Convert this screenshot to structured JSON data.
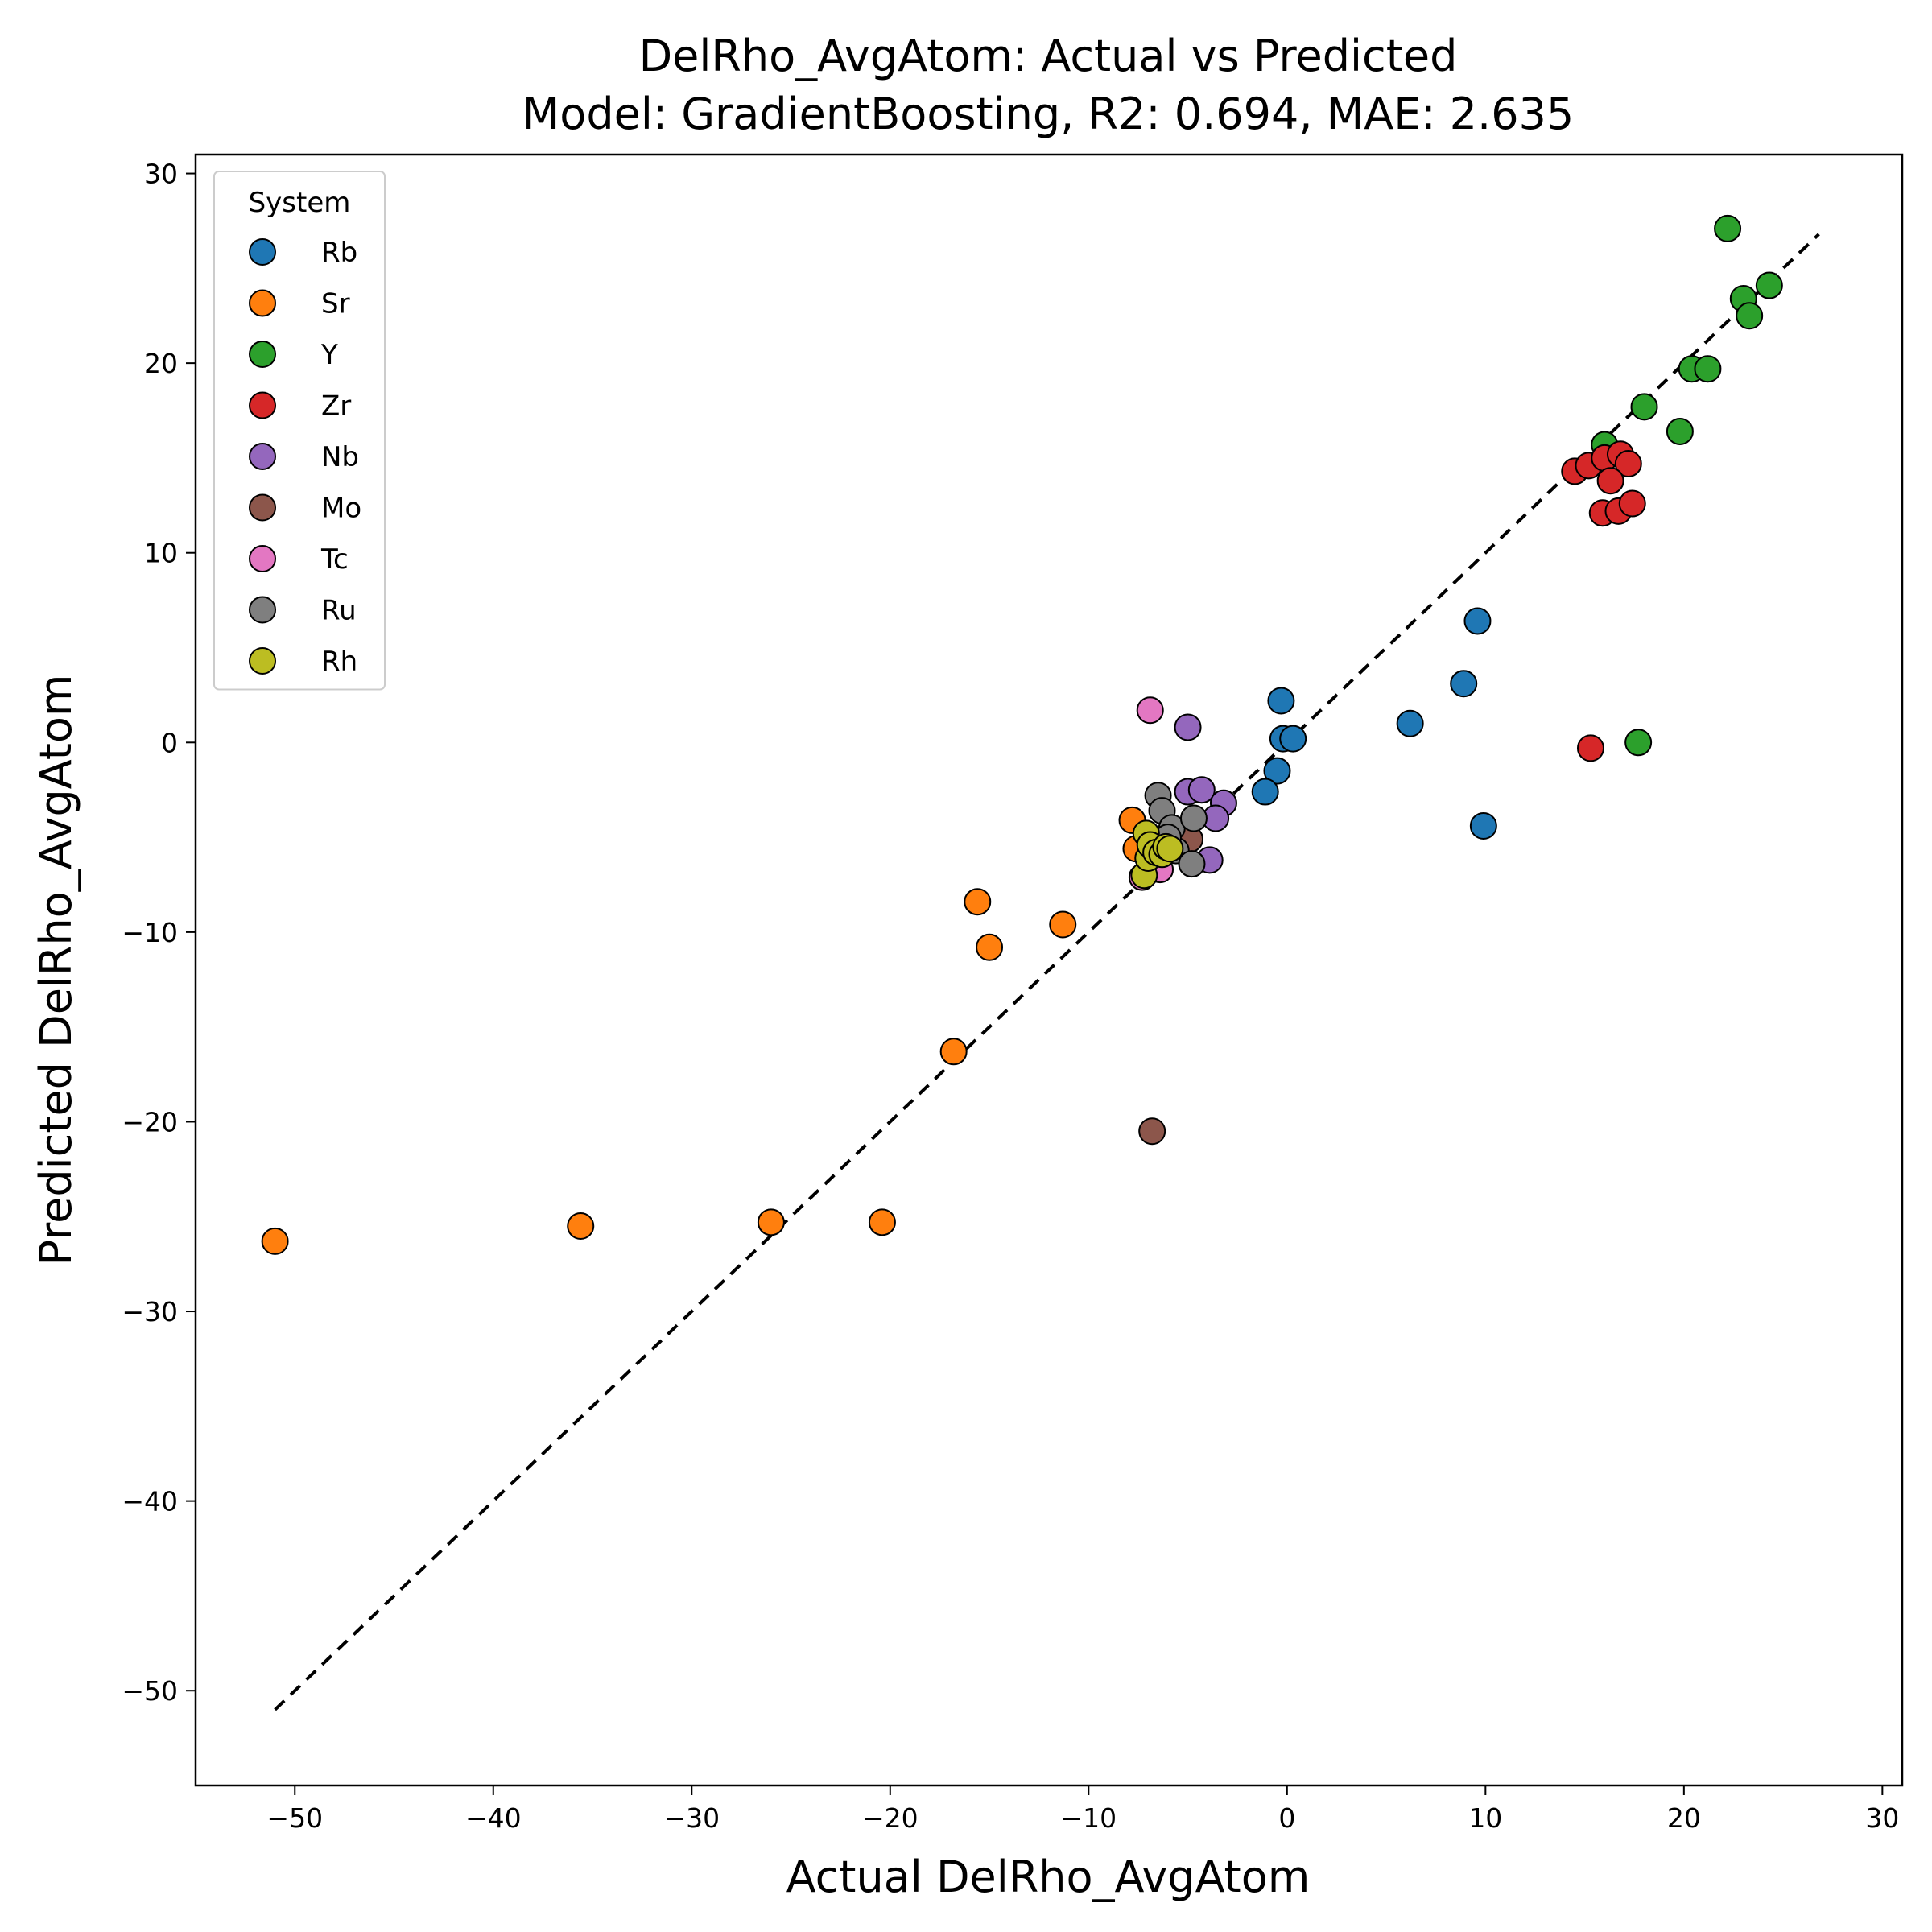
{
  "chart_data": {
    "type": "scatter",
    "title_line1": "DelRho_AvgAtom: Actual vs Predicted",
    "title_line2": "Model: GradientBoosting, R2: 0.694, MAE: 2.635",
    "xlabel": "Actual DelRho_AvgAtom",
    "ylabel": "Predicted DelRho_AvgAtom",
    "xlim": [
      -55,
      31
    ],
    "ylim": [
      -55,
      31
    ],
    "xticks": [
      -50,
      -40,
      -30,
      -20,
      -10,
      0,
      10,
      20,
      30
    ],
    "yticks": [
      -50,
      -40,
      -30,
      -20,
      -10,
      0,
      10,
      20,
      30
    ],
    "xtick_labels": [
      "−50",
      "−40",
      "−30",
      "−20",
      "−10",
      "0",
      "10",
      "20",
      "30"
    ],
    "ytick_labels": [
      "−50",
      "−40",
      "−30",
      "−20",
      "−10",
      "0",
      "10",
      "20",
      "30"
    ],
    "grid": false,
    "legend": {
      "title": "System",
      "placement": "top-left"
    },
    "reference_line": {
      "style": "dashed",
      "color": "#000000",
      "x": [
        -51,
        26.8
      ],
      "y": [
        -51,
        26.8
      ]
    },
    "series": [
      {
        "name": "Rb",
        "color": "#1f77b4",
        "points": [
          [
            -0.3,
            2.2
          ],
          [
            -0.2,
            0.2
          ],
          [
            0.3,
            0.2
          ],
          [
            -0.5,
            -1.5
          ],
          [
            -1.1,
            -2.6
          ],
          [
            6.2,
            1.0
          ],
          [
            8.9,
            3.1
          ],
          [
            9.6,
            6.4
          ],
          [
            9.9,
            -4.4
          ]
        ]
      },
      {
        "name": "Sr",
        "color": "#ff7f0e",
        "points": [
          [
            -51.0,
            -26.3
          ],
          [
            -35.6,
            -25.5
          ],
          [
            -26.0,
            -25.3
          ],
          [
            -20.4,
            -25.3
          ],
          [
            -16.8,
            -16.3
          ],
          [
            -15.6,
            -8.4
          ],
          [
            -15.0,
            -10.8
          ],
          [
            -11.3,
            -9.6
          ],
          [
            -7.8,
            -4.1
          ],
          [
            -7.6,
            -5.6
          ]
        ]
      },
      {
        "name": "Y",
        "color": "#2ca02c",
        "points": [
          [
            22.2,
            27.1
          ],
          [
            24.3,
            24.1
          ],
          [
            23.0,
            23.4
          ],
          [
            23.3,
            22.5
          ],
          [
            20.4,
            19.7
          ],
          [
            21.2,
            19.7
          ],
          [
            18.0,
            17.7
          ],
          [
            19.8,
            16.4
          ],
          [
            16.0,
            15.7
          ],
          [
            17.7,
            0.0
          ]
        ]
      },
      {
        "name": "Zr",
        "color": "#d62728",
        "points": [
          [
            14.5,
            14.3
          ],
          [
            15.2,
            14.6
          ],
          [
            16.0,
            15.0
          ],
          [
            16.8,
            15.2
          ],
          [
            17.2,
            14.7
          ],
          [
            16.3,
            13.8
          ],
          [
            15.9,
            12.1
          ],
          [
            16.7,
            12.2
          ],
          [
            17.4,
            12.6
          ],
          [
            15.3,
            -0.3
          ]
        ]
      },
      {
        "name": "Nb",
        "color": "#9467bd",
        "points": [
          [
            -5.0,
            0.8
          ],
          [
            -5.0,
            -2.6
          ],
          [
            -4.3,
            -2.5
          ],
          [
            -3.2,
            -3.2
          ],
          [
            -3.6,
            -4.0
          ],
          [
            -3.9,
            -6.2
          ],
          [
            -5.2,
            -5.4
          ]
        ]
      },
      {
        "name": "Mo",
        "color": "#8c564b",
        "points": [
          [
            -6.8,
            -20.5
          ],
          [
            -4.9,
            -5.1
          ]
        ]
      },
      {
        "name": "Tc",
        "color": "#e377c2",
        "points": [
          [
            -6.9,
            1.7
          ],
          [
            -6.4,
            -6.7
          ],
          [
            -7.3,
            -7.1
          ]
        ]
      },
      {
        "name": "Ru",
        "color": "#7f7f7f",
        "points": [
          [
            -6.5,
            -2.8
          ],
          [
            -6.3,
            -3.6
          ],
          [
            -5.8,
            -4.5
          ],
          [
            -4.7,
            -4.0
          ],
          [
            -5.6,
            -5.7
          ],
          [
            -4.8,
            -6.4
          ],
          [
            -6.0,
            -5.0
          ]
        ]
      },
      {
        "name": "Rh",
        "color": "#bcbd22",
        "points": [
          [
            -7.2,
            -7.0
          ],
          [
            -7.0,
            -6.1
          ],
          [
            -7.1,
            -4.8
          ],
          [
            -6.9,
            -5.4
          ],
          [
            -6.6,
            -5.8
          ],
          [
            -6.3,
            -5.9
          ],
          [
            -6.1,
            -5.5
          ],
          [
            -5.9,
            -5.6
          ]
        ]
      }
    ]
  }
}
